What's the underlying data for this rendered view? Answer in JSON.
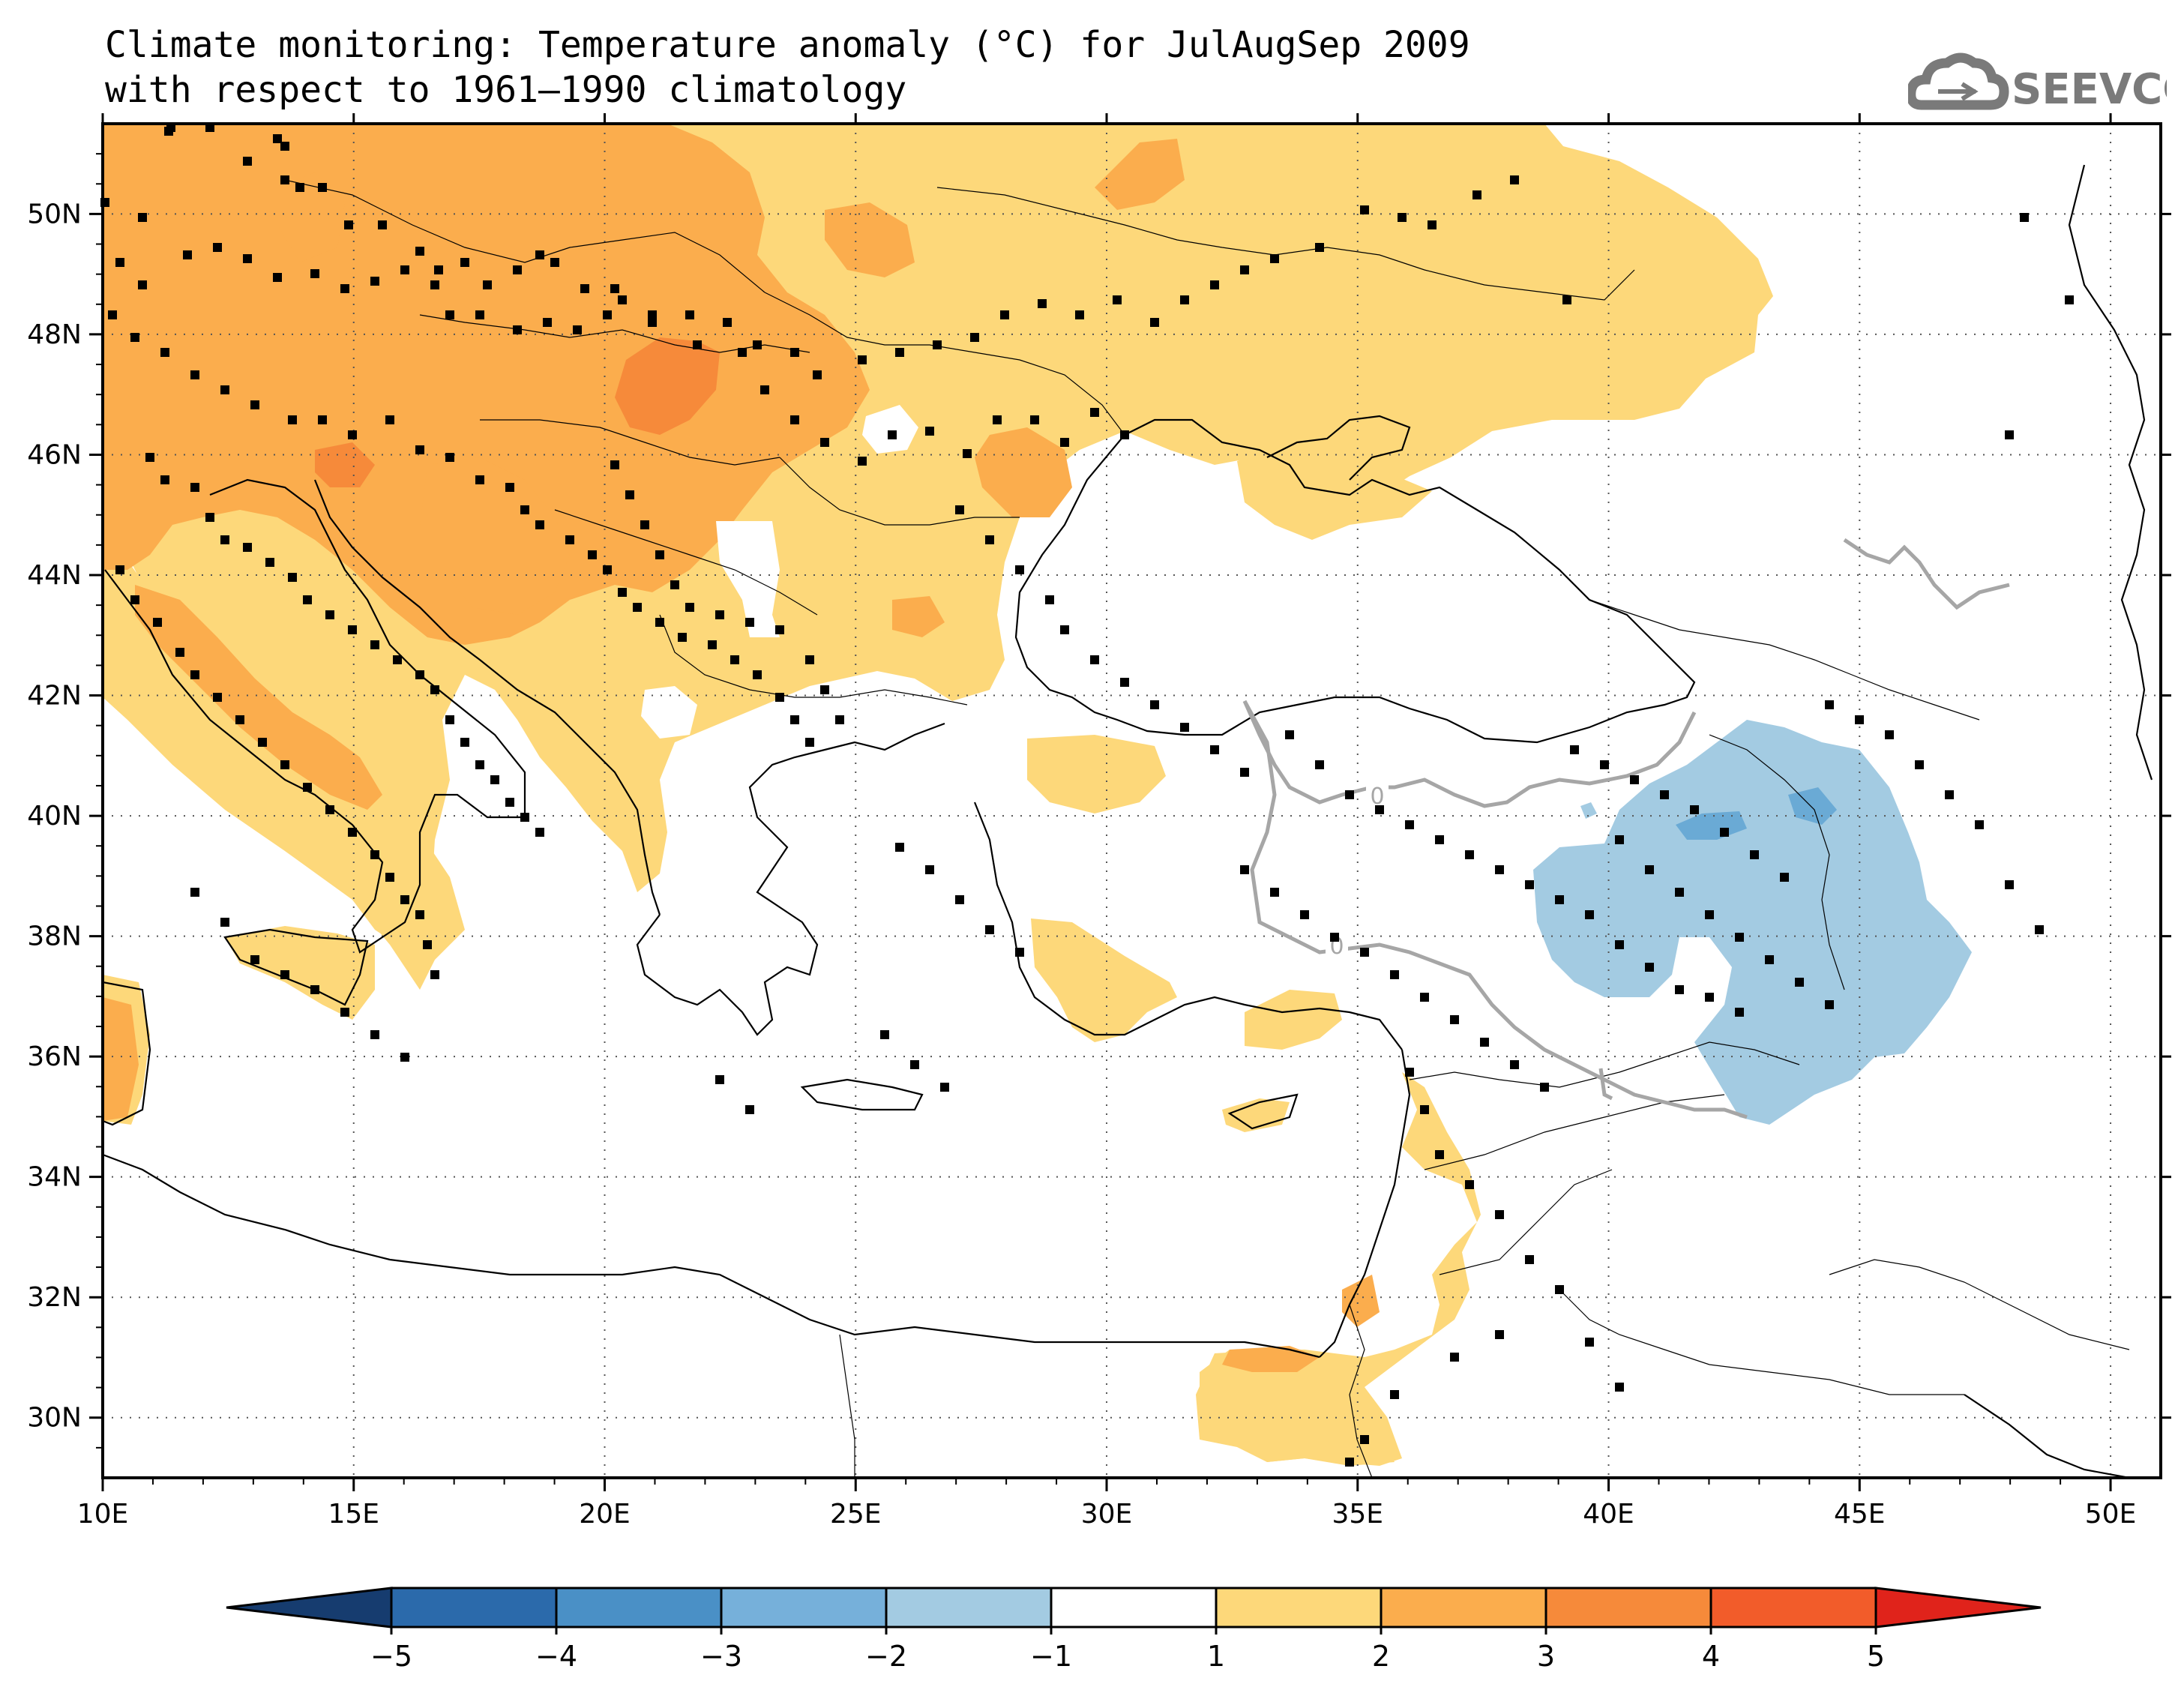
{
  "title": {
    "line1": "Climate monitoring: Temperature anomaly (°C) for JulAugSep 2009",
    "line2": "with respect to 1961–1990 climatology"
  },
  "logo": {
    "text": "SEEVCCC",
    "icon": "cloud-logo-icon",
    "color": "#7a7a7a"
  },
  "map": {
    "lon_range": [
      10,
      51
    ],
    "lat_range": [
      29,
      51.5
    ],
    "lon_ticks": [
      10,
      15,
      20,
      25,
      30,
      35,
      40,
      45,
      50
    ],
    "lon_labels": [
      "10E",
      "15E",
      "20E",
      "25E",
      "30E",
      "35E",
      "40E",
      "45E",
      "50E"
    ],
    "lat_ticks": [
      30,
      32,
      34,
      36,
      38,
      40,
      42,
      44,
      46,
      48,
      50
    ],
    "lat_labels": [
      "30N",
      "32N",
      "34N",
      "36N",
      "38N",
      "40N",
      "42N",
      "44N",
      "46N",
      "48N",
      "50N"
    ],
    "contour_label": "0",
    "colors": {
      "anom_1_2": "#fdd87a",
      "anom_2_3": "#fbad4d",
      "anom_3_4": "#f68a3a",
      "anom_m1_m2": "#a3cbe2",
      "anom_m2_m3": "#6aaad5",
      "contour": "#a6a6a6",
      "coast": "#000000"
    }
  },
  "colorbar": {
    "colors": [
      "#163c6f",
      "#2b6aab",
      "#4a90c6",
      "#76b0da",
      "#a3cbe2",
      "#ffffff",
      "#fdd87a",
      "#fbad4d",
      "#f68a3a",
      "#f25c2a",
      "#e0231b"
    ],
    "labels": [
      "−5",
      "−4",
      "−3",
      "−2",
      "−1",
      "1",
      "2",
      "3",
      "4",
      "5"
    ]
  }
}
